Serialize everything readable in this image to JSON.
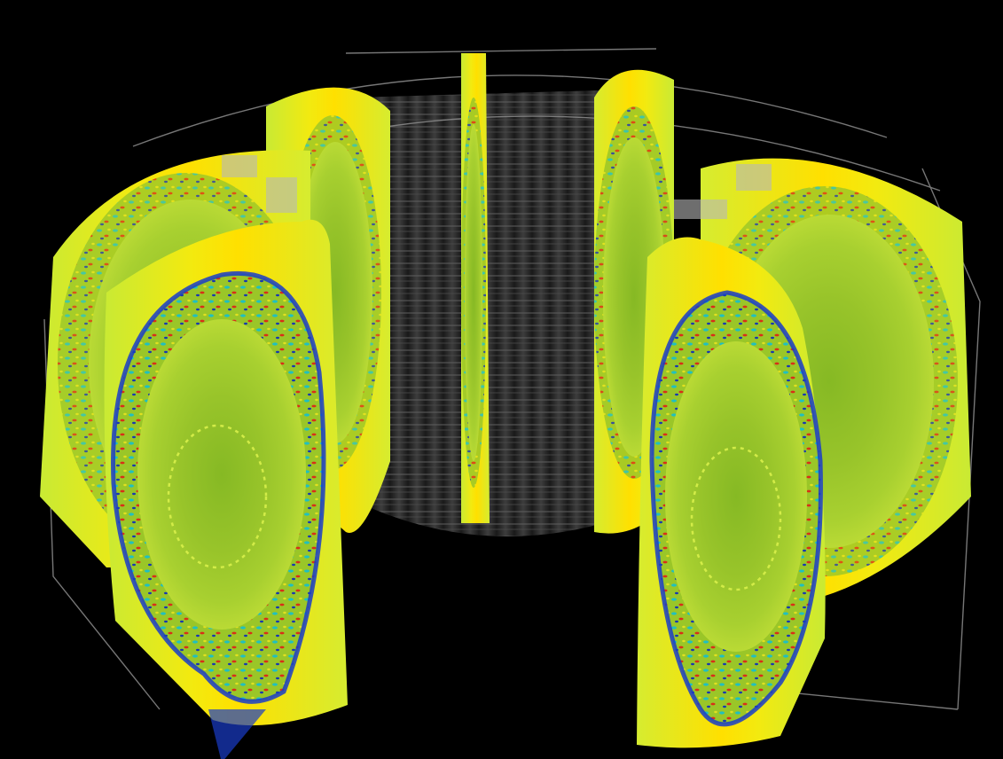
{
  "colors": {
    "background": "#000000",
    "wireframe": "#9a9a9a",
    "inner_wall": "#3a3a3a",
    "edge": "#ffe600",
    "outer": "#c8e830",
    "core": "#8cbf28",
    "turbulence_red": "#d83018",
    "turbulence_cyan": "#20c8c8",
    "turbulence_blue": "#1830c0"
  }
}
